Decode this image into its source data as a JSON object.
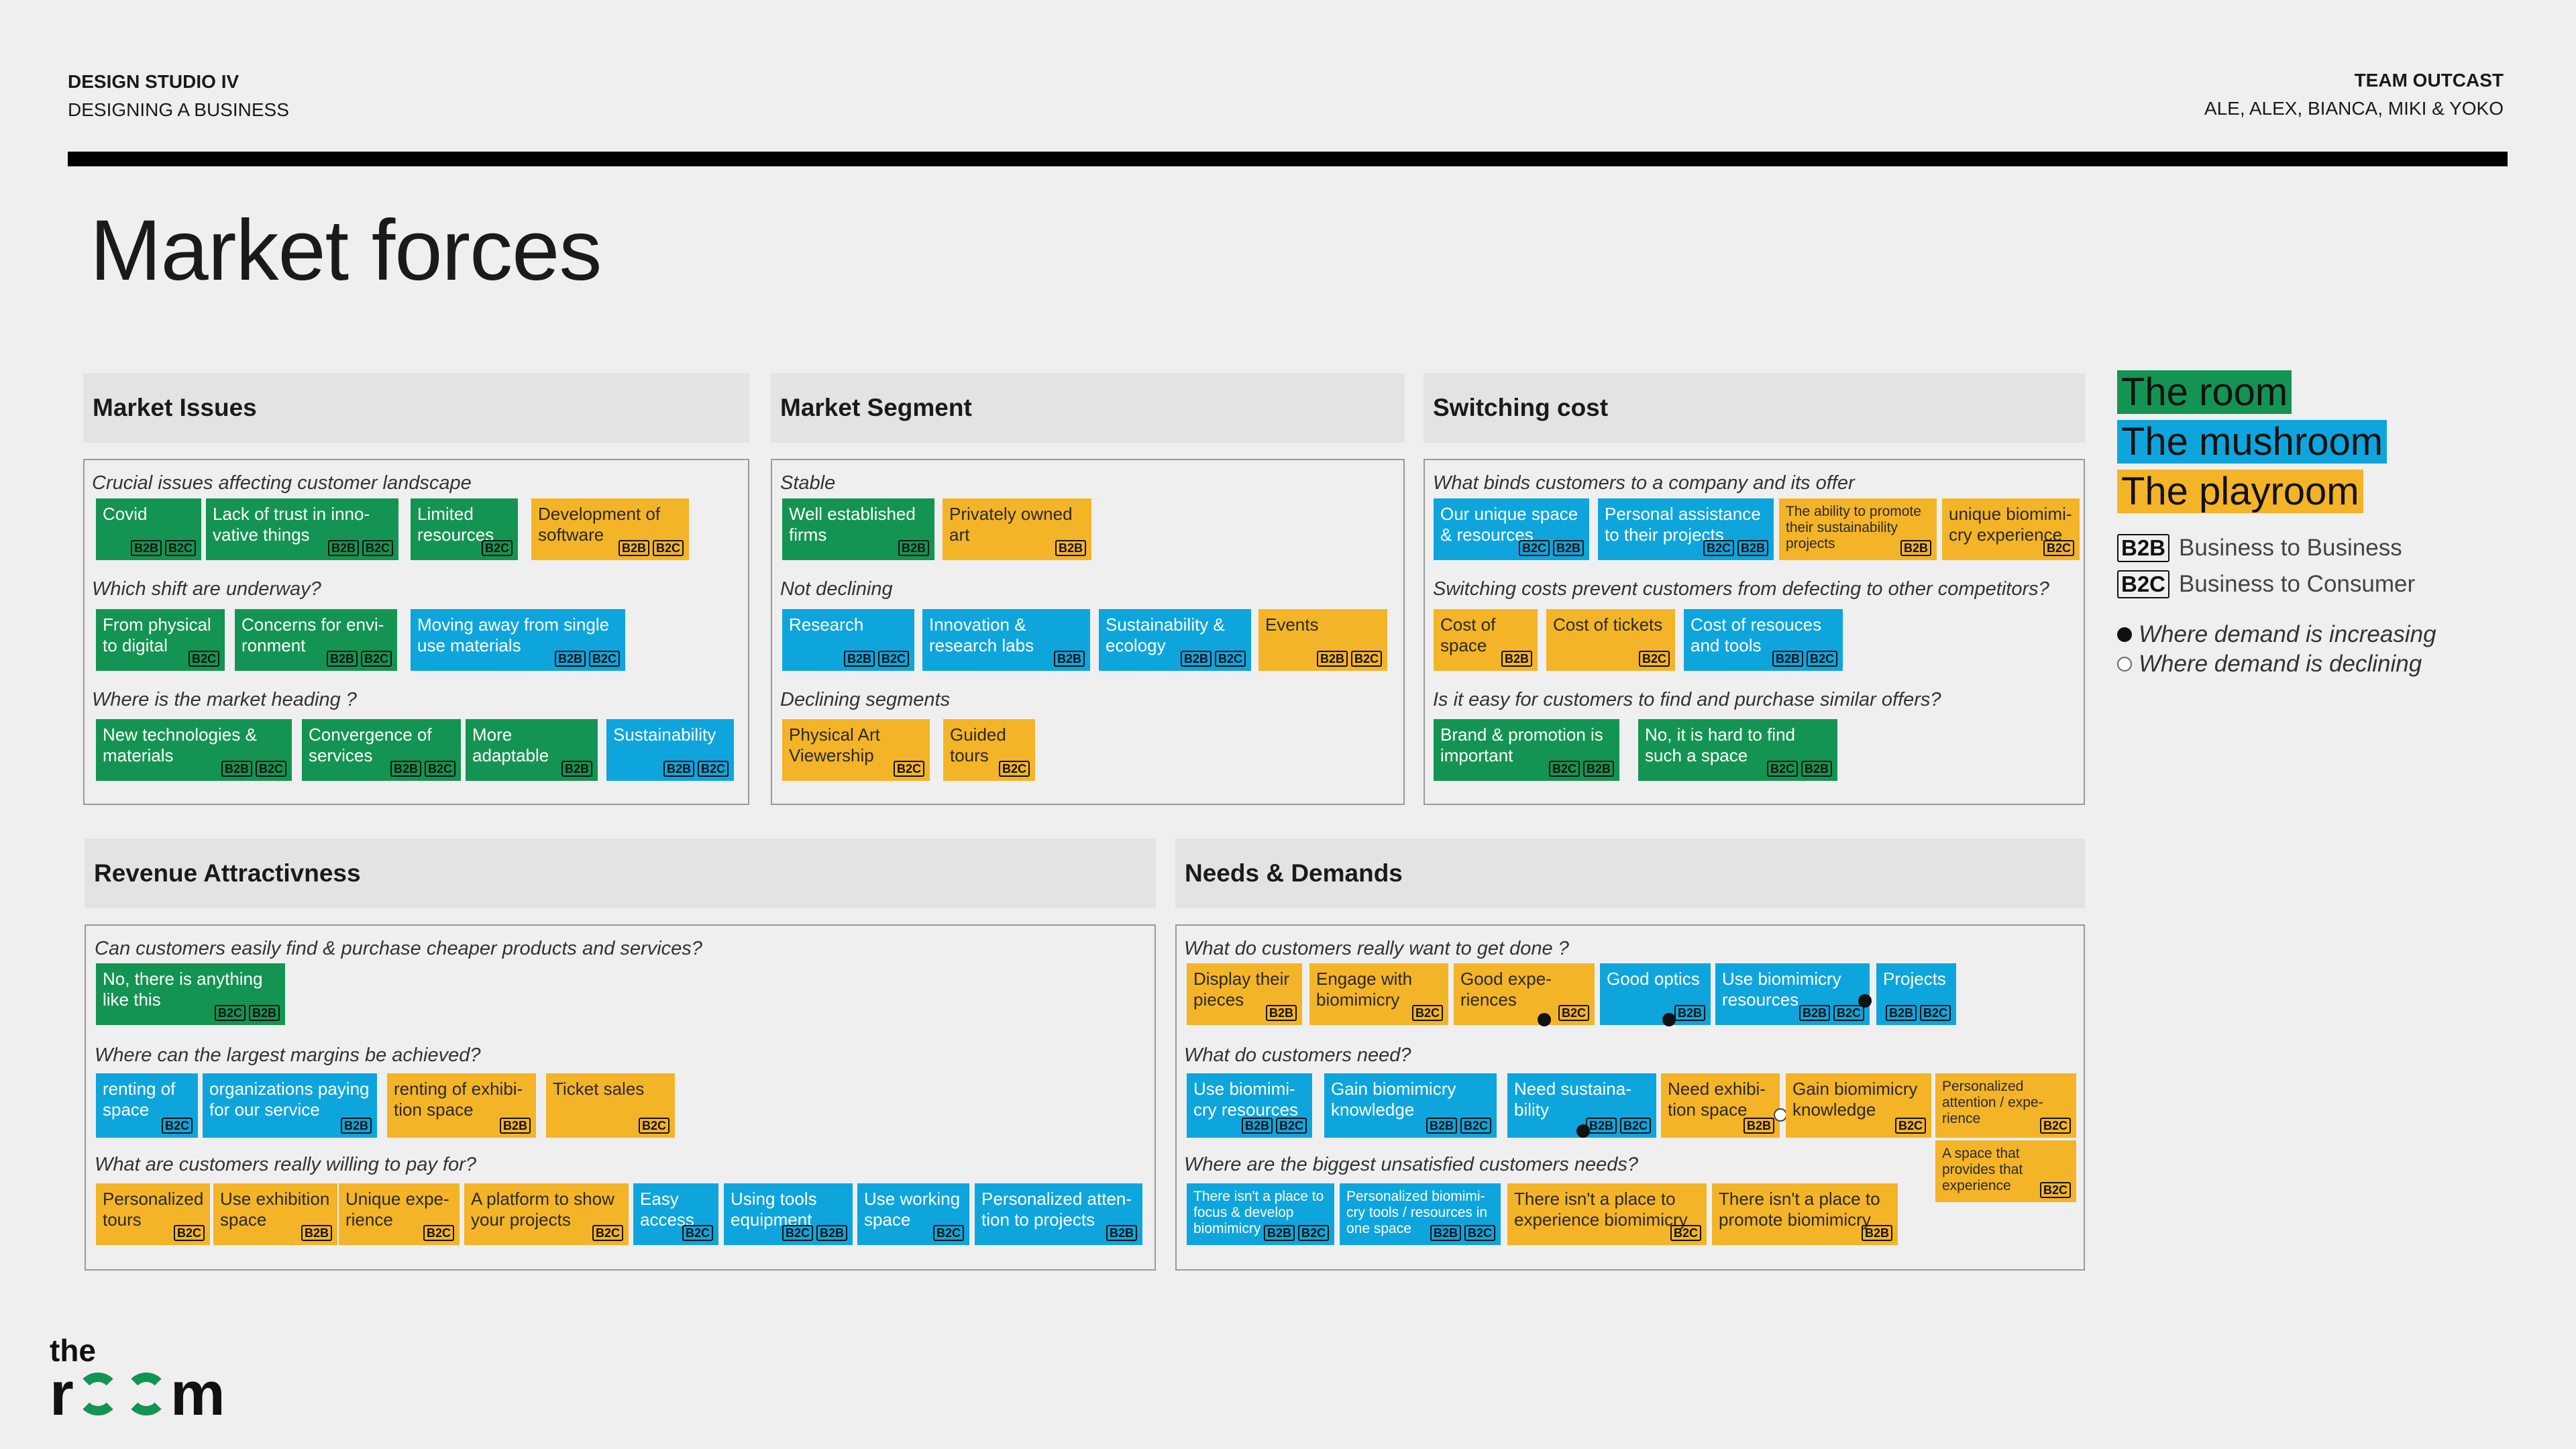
{
  "header": {
    "course": "DESIGN STUDIO IV",
    "subtitle": "DESIGNING A BUSINESS",
    "team": "TEAM OUTCAST",
    "members": "ALE, ALEX, BIANCA, MIKI & YOKO"
  },
  "page_title": "Market forces",
  "legend": {
    "green": "The room",
    "blue": "The mushroom",
    "yellow": "The playroom",
    "b2b_tag": "B2B",
    "b2b_text": "Business to Business",
    "b2c_tag": "B2C",
    "b2c_text": "Business to Consumer",
    "increasing": "Where demand is increasing",
    "declining": "Where demand is declining"
  },
  "colors": {
    "green": "#149452",
    "blue": "#0ea5dd",
    "yellow": "#f4b427",
    "rule": "#000000"
  },
  "logo": {
    "top": "the",
    "bottom_r": "r",
    "bottom_m": "m"
  },
  "sections": {
    "market_issues": {
      "title": "Market Issues",
      "q1": "Crucial issues affecting customer landscape",
      "q2": "Which shift are underway?",
      "q3": "Where is the market heading ?",
      "notes": [
        {
          "text": "Covid",
          "tags": [
            "B2B",
            "B2C"
          ],
          "color": "green"
        },
        {
          "text": "Lack of trust in inno-vative things",
          "tags": [
            "B2B",
            "B2C"
          ],
          "color": "green"
        },
        {
          "text": "Limited resources",
          "tags": [
            "B2C"
          ],
          "color": "green"
        },
        {
          "text": "Development of software",
          "tags": [
            "B2B",
            "B2C"
          ],
          "color": "yellow"
        },
        {
          "text": "From physical to digital",
          "tags": [
            "B2C"
          ],
          "color": "green"
        },
        {
          "text": "Concerns for envi-ronment",
          "tags": [
            "B2B",
            "B2C"
          ],
          "color": "green"
        },
        {
          "text": "Moving away from single use materials",
          "tags": [
            "B2B",
            "B2C"
          ],
          "color": "blue"
        },
        {
          "text": "New technologies & materials",
          "tags": [
            "B2B",
            "B2C"
          ],
          "color": "green"
        },
        {
          "text": "Convergence of services",
          "tags": [
            "B2B",
            "B2C"
          ],
          "color": "green"
        },
        {
          "text": "More adaptable",
          "tags": [
            "B2B"
          ],
          "color": "green"
        },
        {
          "text": "Sustainability",
          "tags": [
            "B2B",
            "B2C"
          ],
          "color": "blue"
        }
      ]
    },
    "market_segment": {
      "title": "Market Segment",
      "q1": "Stable",
      "q2": "Not declining",
      "q3": "Declining segments",
      "notes": [
        {
          "text": "Well established firms",
          "tags": [
            "B2B"
          ],
          "color": "green"
        },
        {
          "text": "Privately owned art",
          "tags": [
            "B2B"
          ],
          "color": "yellow"
        },
        {
          "text": "Research",
          "tags": [
            "B2B",
            "B2C"
          ],
          "color": "blue"
        },
        {
          "text": "Innovation & research labs",
          "tags": [
            "B2B"
          ],
          "color": "blue"
        },
        {
          "text": "Sustainability & ecology",
          "tags": [
            "B2B",
            "B2C"
          ],
          "color": "blue"
        },
        {
          "text": "Events",
          "tags": [
            "B2B",
            "B2C"
          ],
          "color": "yellow"
        },
        {
          "text": "Physical Art Viewership",
          "tags": [
            "B2C"
          ],
          "color": "yellow"
        },
        {
          "text": "Guided tours",
          "tags": [
            "B2C"
          ],
          "color": "yellow"
        }
      ]
    },
    "switching_cost": {
      "title": "Switching cost",
      "q1": "What binds customers to a company and its offer",
      "q2": "Switching costs prevent customers from defecting to other competitors?",
      "q3": "Is it easy for customers to find and purchase similar offers?",
      "notes": [
        {
          "text": "Our unique space & resources",
          "tags": [
            "B2C",
            "B2B"
          ],
          "color": "blue"
        },
        {
          "text": "Personal assistance to their projects",
          "tags": [
            "B2C",
            "B2B"
          ],
          "color": "blue"
        },
        {
          "text": "The ability to promote their sustainability projects",
          "tags": [
            "B2B"
          ],
          "color": "yellow"
        },
        {
          "text": "unique biomimi-cry experience",
          "tags": [
            "B2C"
          ],
          "color": "yellow"
        },
        {
          "text": "Cost of space",
          "tags": [
            "B2B"
          ],
          "color": "yellow"
        },
        {
          "text": "Cost of tickets",
          "tags": [
            "B2C"
          ],
          "color": "yellow"
        },
        {
          "text": "Cost of resouces and tools",
          "tags": [
            "B2B",
            "B2C"
          ],
          "color": "blue"
        },
        {
          "text": "Brand & promotion is important",
          "tags": [
            "B2C",
            "B2B"
          ],
          "color": "green"
        },
        {
          "text": "No, it is hard to find such a space",
          "tags": [
            "B2C",
            "B2B"
          ],
          "color": "green"
        }
      ]
    },
    "revenue": {
      "title": "Revenue Attractivness",
      "q1": "Can customers easily find & purchase cheaper products and services?",
      "q2": "Where can the largest margins be achieved?",
      "q3": "What are customers really willing to pay for?",
      "notes": [
        {
          "text": "No, there is anything like this",
          "tags": [
            "B2C",
            "B2B"
          ],
          "color": "green"
        },
        {
          "text": "renting of space",
          "tags": [
            "B2C"
          ],
          "color": "blue"
        },
        {
          "text": "organizations paying for our service",
          "tags": [
            "B2B"
          ],
          "color": "blue"
        },
        {
          "text": "renting of exhibi-tion space",
          "tags": [
            "B2B"
          ],
          "color": "yellow"
        },
        {
          "text": "Ticket sales",
          "tags": [
            "B2C"
          ],
          "color": "yellow"
        },
        {
          "text": "Personalized tours",
          "tags": [
            "B2C"
          ],
          "color": "yellow"
        },
        {
          "text": "Use exhibition space",
          "tags": [
            "B2B"
          ],
          "color": "yellow"
        },
        {
          "text": "Unique expe-rience",
          "tags": [
            "B2C"
          ],
          "color": "yellow"
        },
        {
          "text": "A platform to show your projects",
          "tags": [
            "B2C"
          ],
          "color": "yellow"
        },
        {
          "text": "Easy access",
          "tags": [
            "B2C"
          ],
          "color": "blue"
        },
        {
          "text": "Using tools equipment",
          "tags": [
            "B2C",
            "B2B"
          ],
          "color": "blue"
        },
        {
          "text": "Use working space",
          "tags": [
            "B2C"
          ],
          "color": "blue"
        },
        {
          "text": "Personalized atten-tion to projects",
          "tags": [
            "B2B"
          ],
          "color": "blue"
        }
      ]
    },
    "needs": {
      "title": "Needs & Demands",
      "q1": "What do customers really want to get done ?",
      "q2": "What do customers need?",
      "q3": "Where are the biggest unsatisfied customers needs?",
      "notes": [
        {
          "text": "Display their pieces",
          "tags": [
            "B2B"
          ],
          "color": "yellow"
        },
        {
          "text": "Engage with biomimicry",
          "tags": [
            "B2C"
          ],
          "color": "yellow"
        },
        {
          "text": "Good expe-riences",
          "tags": [
            "B2C"
          ],
          "color": "yellow",
          "dot": "up"
        },
        {
          "text": "Good optics",
          "tags": [
            "B2B"
          ],
          "color": "blue",
          "dot": "up"
        },
        {
          "text": "Use biomimicry resources",
          "tags": [
            "B2B",
            "B2C"
          ],
          "color": "blue",
          "dot": "up"
        },
        {
          "text": "Projects",
          "tags": [
            "B2B",
            "B2C"
          ],
          "color": "blue"
        },
        {
          "text": "Use biomimi-cry resources",
          "tags": [
            "B2B",
            "B2C"
          ],
          "color": "blue"
        },
        {
          "text": "Gain biomimicry knowledge",
          "tags": [
            "B2B",
            "B2C"
          ],
          "color": "blue"
        },
        {
          "text": "Need sustaina-bility",
          "tags": [
            "B2B",
            "B2C"
          ],
          "color": "blue",
          "dot": "up"
        },
        {
          "text": "Need exhibi-tion space",
          "tags": [
            "B2B"
          ],
          "color": "yellow",
          "dot": "down"
        },
        {
          "text": "Gain biomimicry knowledge",
          "tags": [
            "B2C"
          ],
          "color": "yellow"
        },
        {
          "text": "Personalized attention / expe-rience",
          "tags": [
            "B2C"
          ],
          "color": "yellow"
        },
        {
          "text": "There isn't a place to focus & develop biomimicry",
          "tags": [
            "B2B",
            "B2C"
          ],
          "color": "blue"
        },
        {
          "text": "Personalized biomimi-cry tools / resources in one space",
          "tags": [
            "B2B",
            "B2C"
          ],
          "color": "blue"
        },
        {
          "text": "There isn't a place to experience biomimicry",
          "tags": [
            "B2C"
          ],
          "color": "yellow"
        },
        {
          "text": "There isn't a place to promote biomimicry",
          "tags": [
            "B2B"
          ],
          "color": "yellow"
        },
        {
          "text": "A space that provides that experience",
          "tags": [
            "B2C"
          ],
          "color": "yellow"
        }
      ]
    }
  }
}
